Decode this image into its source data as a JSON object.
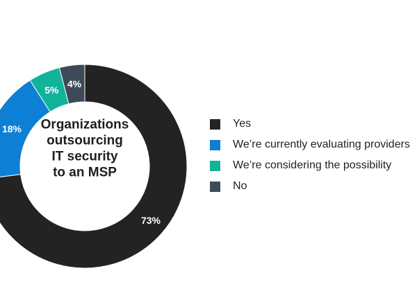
{
  "chart_data": {
    "type": "pie",
    "variant": "donut",
    "title": "Organizations outsourcing IT security to an MSP",
    "title_lines": [
      "Organizations",
      "outsourcing",
      "IT security",
      "to an MSP"
    ],
    "categories": [
      "Yes",
      "We’re currently evaluating providers",
      "We’re considering the possibility",
      "No"
    ],
    "values": [
      73,
      18,
      5,
      4
    ],
    "value_labels": [
      "73%",
      "18%",
      "5%",
      "4%"
    ],
    "colors": [
      "#232323",
      "#0d7fd4",
      "#12b39b",
      "#3d4a58"
    ],
    "legend_position": "right"
  }
}
